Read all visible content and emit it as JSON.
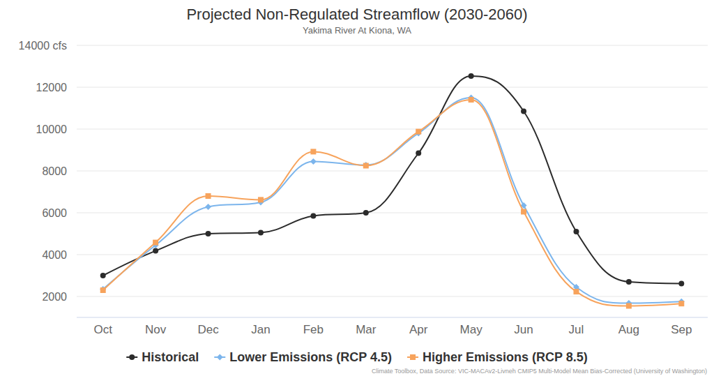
{
  "chart_data": {
    "type": "line",
    "title": "Projected Non-Regulated Streamflow (2030-2060)",
    "subtitle": "Yakima River At Kiona, WA",
    "credits": "Climate Toolbox, Data Source: VIC-MACAv2-Livneh CMIP5 Multi-Model Mean Bias-Corrected (University of Washington)",
    "categories": [
      "Oct",
      "Nov",
      "Dec",
      "Jan",
      "Feb",
      "Mar",
      "Apr",
      "May",
      "Jun",
      "Jul",
      "Aug",
      "Sep"
    ],
    "series": [
      {
        "name": "Historical",
        "color": "#2b2b2b",
        "marker": "circle",
        "values": [
          3000,
          4180,
          5000,
          5050,
          5850,
          6000,
          8850,
          12530,
          10850,
          5100,
          2700,
          2620
        ]
      },
      {
        "name": "Lower Emissions (RCP 4.5)",
        "color": "#7cb5ec",
        "marker": "diamond",
        "values": [
          2350,
          4450,
          6280,
          6500,
          8450,
          8280,
          9800,
          11500,
          6350,
          2450,
          1680,
          1760
        ]
      },
      {
        "name": "Higher Emissions (RCP 8.5)",
        "color": "#f7a35c",
        "marker": "square",
        "values": [
          2300,
          4580,
          6800,
          6620,
          8920,
          8250,
          9880,
          11400,
          6050,
          2230,
          1550,
          1660
        ]
      }
    ],
    "ylim": [
      1000,
      14000
    ],
    "yticks": [
      2000,
      4000,
      6000,
      8000,
      10000,
      12000,
      {
        "value": 14000,
        "label": "14000 cfs"
      }
    ],
    "grid": true,
    "legend": "bottom"
  }
}
